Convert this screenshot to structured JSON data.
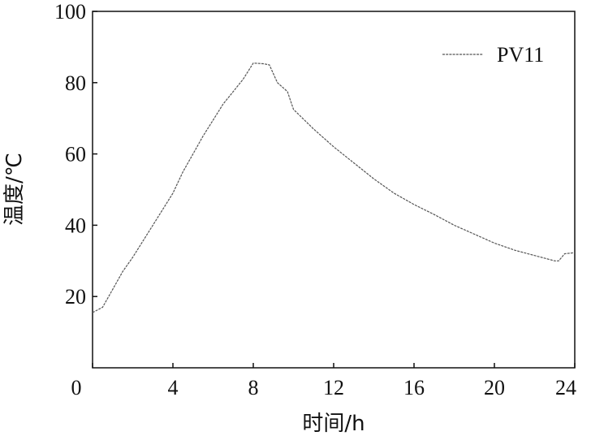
{
  "chart_data": {
    "type": "line",
    "xlabel": "时间/h",
    "ylabel": "温度/℃",
    "xlim": [
      0,
      24
    ],
    "ylim": [
      0,
      100
    ],
    "x_ticks": [
      0,
      4,
      8,
      12,
      16,
      20,
      24
    ],
    "y_ticks": [
      20,
      40,
      60,
      80,
      100
    ],
    "x_tick_labels": [
      "0",
      "4",
      "8",
      "12",
      "16",
      "20",
      "24"
    ],
    "y_tick_labels": [
      "20",
      "40",
      "60",
      "80",
      "100"
    ],
    "grid": false,
    "legend_position": "top-right",
    "series": [
      {
        "name": "PV11",
        "color": "#555555",
        "x": [
          0,
          0.5,
          1.0,
          1.5,
          2,
          3,
          4,
          4.5,
          5,
          5.5,
          6,
          6.5,
          7,
          7.5,
          8,
          8.5,
          8.8,
          9.2,
          9.7,
          10,
          11,
          12,
          13,
          14,
          15,
          16,
          17,
          18,
          19,
          20,
          21,
          22,
          23,
          23.2,
          23.5,
          24
        ],
        "y": [
          15.5,
          17,
          22,
          27,
          31,
          40,
          49,
          55,
          60,
          65,
          69.5,
          74,
          77.5,
          81,
          85.5,
          85.3,
          85,
          80,
          77.5,
          72.5,
          67,
          62,
          57.5,
          53,
          49,
          45.8,
          43,
          40,
          37.5,
          35,
          33,
          31.5,
          30,
          30,
          32,
          32.3
        ]
      }
    ]
  }
}
